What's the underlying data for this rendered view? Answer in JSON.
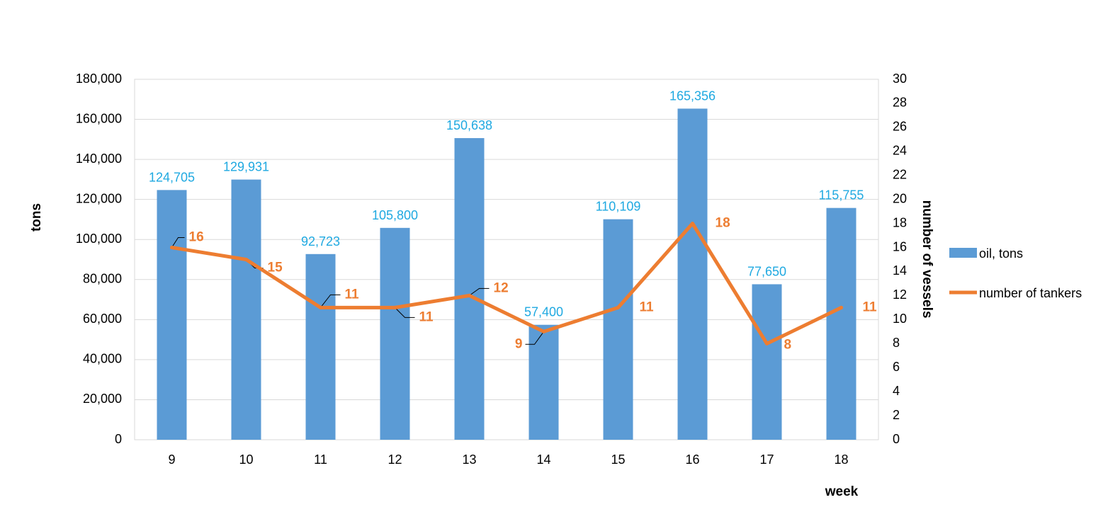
{
  "chart_data": {
    "type": "bar",
    "categories": [
      "9",
      "10",
      "11",
      "12",
      "13",
      "14",
      "15",
      "16",
      "17",
      "18"
    ],
    "series": [
      {
        "name": "oil, tons",
        "type": "bar",
        "axis": "left",
        "color": "#5b9bd5",
        "values": [
          124705,
          129931,
          92723,
          105800,
          150638,
          57400,
          110109,
          165356,
          77650,
          115755
        ],
        "labels": [
          "124,705",
          "129,931",
          "92,723",
          "105,800",
          "150,638",
          "57,400",
          "110,109",
          "165,356",
          "77,650",
          "115,755"
        ],
        "label_color": "#1fa9e1"
      },
      {
        "name": "number of tankers",
        "type": "line",
        "axis": "right",
        "color": "#ed7d31",
        "values": [
          16,
          15,
          11,
          11,
          12,
          9,
          11,
          18,
          8,
          11
        ],
        "labels": [
          "16",
          "15",
          "11",
          "11",
          "12",
          "9",
          "11",
          "18",
          "8",
          "11"
        ]
      }
    ],
    "xlabel": "week",
    "ylabel": "tons",
    "y2label": "number of vessels",
    "ylim": [
      0,
      180000
    ],
    "y2lim": [
      0,
      30
    ],
    "yticks": [
      "0",
      "20,000",
      "40,000",
      "60,000",
      "80,000",
      "100,000",
      "120,000",
      "140,000",
      "160,000",
      "180,000"
    ],
    "y2ticks": [
      "0",
      "2",
      "4",
      "6",
      "8",
      "10",
      "12",
      "14",
      "16",
      "18",
      "20",
      "22",
      "24",
      "26",
      "28",
      "30"
    ],
    "grid": true,
    "legend_position": "right"
  }
}
